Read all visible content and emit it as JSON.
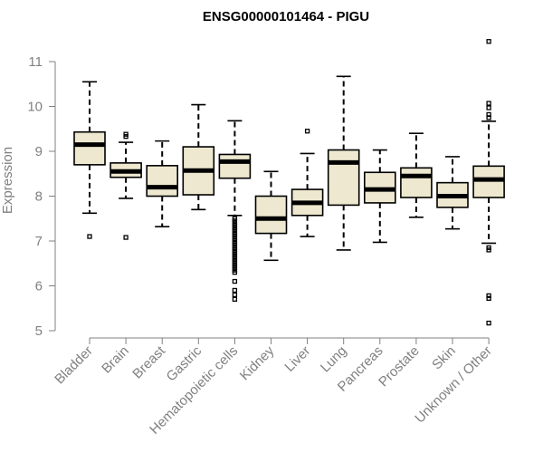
{
  "chart_data": {
    "type": "boxplot",
    "title": "ENSG00000101464 - PIGU",
    "ylabel": "Expression",
    "ylim": [
      5,
      11.5
    ],
    "yticks": [
      5,
      6,
      7,
      8,
      9,
      10,
      11
    ],
    "grid": false,
    "colors": {
      "box_fill": "#ede8cf",
      "box_stroke": "#000000",
      "axis": "#808080"
    },
    "categories": [
      "Bladder",
      "Brain",
      "Breast",
      "Gastric",
      "Hematopoietic cells",
      "Kidney",
      "Liver",
      "Lung",
      "Pancreas",
      "Prostate",
      "Skin",
      "Unknown / Other"
    ],
    "boxes": [
      {
        "category": "Bladder",
        "whisker_low": 7.62,
        "q1": 8.7,
        "median": 9.15,
        "q3": 9.43,
        "whisker_high": 10.55,
        "outliers": [
          7.1
        ]
      },
      {
        "category": "Brain",
        "whisker_low": 7.95,
        "q1": 8.42,
        "median": 8.55,
        "q3": 8.74,
        "whisker_high": 9.2,
        "outliers": [
          7.08,
          9.33,
          9.38
        ]
      },
      {
        "category": "Breast",
        "whisker_low": 7.32,
        "q1": 8.0,
        "median": 8.2,
        "q3": 8.68,
        "whisker_high": 9.23,
        "outliers": []
      },
      {
        "category": "Gastric",
        "whisker_low": 7.7,
        "q1": 8.03,
        "median": 8.57,
        "q3": 9.1,
        "whisker_high": 10.04,
        "outliers": []
      },
      {
        "category": "Hematopoietic cells",
        "whisker_low": 7.57,
        "q1": 8.4,
        "median": 8.77,
        "q3": 8.93,
        "whisker_high": 9.68,
        "outliers": [
          7.5,
          7.45,
          7.4,
          7.35,
          7.3,
          7.25,
          7.2,
          7.15,
          7.1,
          7.05,
          7.0,
          6.95,
          6.9,
          6.85,
          6.8,
          6.75,
          6.7,
          6.65,
          6.6,
          6.55,
          6.5,
          6.45,
          6.4,
          6.35,
          6.3,
          6.1,
          5.9,
          5.8,
          5.7
        ]
      },
      {
        "category": "Kidney",
        "whisker_low": 6.57,
        "q1": 7.17,
        "median": 7.5,
        "q3": 8.0,
        "whisker_high": 8.55,
        "outliers": []
      },
      {
        "category": "Liver",
        "whisker_low": 7.1,
        "q1": 7.57,
        "median": 7.85,
        "q3": 8.15,
        "whisker_high": 8.95,
        "outliers": [
          9.45
        ]
      },
      {
        "category": "Lung",
        "whisker_low": 6.8,
        "q1": 7.8,
        "median": 8.75,
        "q3": 9.03,
        "whisker_high": 10.67,
        "outliers": []
      },
      {
        "category": "Pancreas",
        "whisker_low": 6.97,
        "q1": 7.85,
        "median": 8.15,
        "q3": 8.53,
        "whisker_high": 9.03,
        "outliers": []
      },
      {
        "category": "Prostate",
        "whisker_low": 7.53,
        "q1": 7.97,
        "median": 8.45,
        "q3": 8.63,
        "whisker_high": 9.4,
        "outliers": []
      },
      {
        "category": "Skin",
        "whisker_low": 7.27,
        "q1": 7.75,
        "median": 8.0,
        "q3": 8.3,
        "whisker_high": 8.88,
        "outliers": []
      },
      {
        "category": "Unknown / Other",
        "whisker_low": 6.95,
        "q1": 7.97,
        "median": 8.37,
        "q3": 8.67,
        "whisker_high": 9.67,
        "outliers": [
          11.45,
          10.07,
          9.97,
          9.82,
          9.75,
          6.85,
          6.8,
          5.78,
          5.72,
          5.17
        ]
      }
    ]
  }
}
